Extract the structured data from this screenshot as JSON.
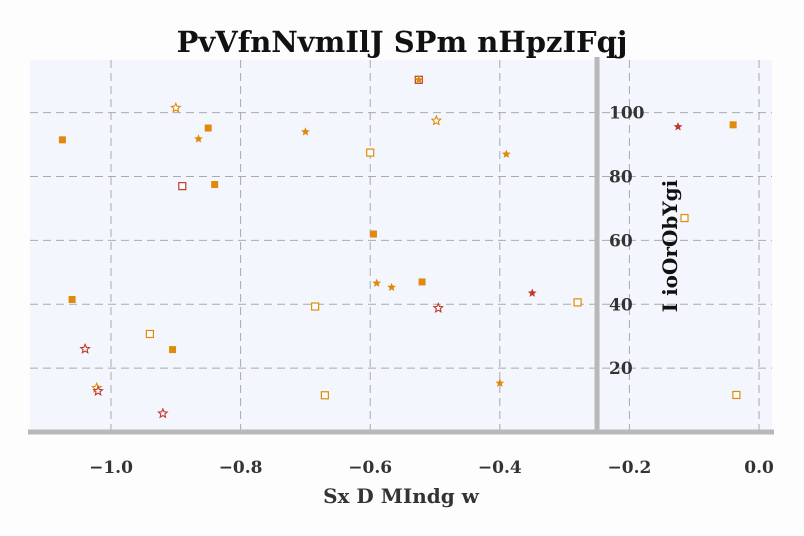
{
  "chart_data": {
    "type": "scatter",
    "title": "PvVfnNvmIlJ SPm nHpzIFqj",
    "xlabel": "Sx D MIndg w",
    "ylabel": "I ioOrObYgi",
    "xlim": [
      -1.125,
      0.02
    ],
    "ylim": [
      0,
      116.5
    ],
    "grid": true,
    "x_ticks": [
      -1.0,
      -0.8,
      -0.6,
      -0.4,
      -0.2,
      0.0
    ],
    "x_tick_labels": [
      "−1.0",
      "−0.8",
      "−0.6",
      "−0.4",
      "−0.2",
      "0.0"
    ],
    "y_ticks": [
      20,
      40,
      60,
      80,
      100
    ],
    "y_tick_labels": [
      "20",
      "40",
      "60",
      "80",
      "100"
    ],
    "y_axis_position_x": -0.25,
    "colors": {
      "orange": "#e08a0b",
      "red": "#c0392b",
      "spine": "#b8b8b8",
      "plot_bg": "#f3f6fd",
      "grid": "#aaaaaa"
    },
    "points": [
      {
        "x": -1.075,
        "y": 91.5,
        "marker": "square-filled",
        "color": "#e08a0b"
      },
      {
        "x": -1.06,
        "y": 41.5,
        "marker": "square-filled",
        "color": "#e08a0b"
      },
      {
        "x": -0.905,
        "y": 25.8,
        "marker": "square-filled",
        "color": "#e08a0b"
      },
      {
        "x": -0.85,
        "y": 95.2,
        "marker": "square-filled",
        "color": "#e08a0b"
      },
      {
        "x": -0.84,
        "y": 77.5,
        "marker": "square-filled",
        "color": "#e08a0b"
      },
      {
        "x": -0.595,
        "y": 62.0,
        "marker": "square-filled",
        "color": "#e08a0b"
      },
      {
        "x": -0.52,
        "y": 47.0,
        "marker": "square-filled",
        "color": "#e08a0b"
      },
      {
        "x": -0.04,
        "y": 96.2,
        "marker": "square-filled",
        "color": "#e08a0b"
      },
      {
        "x": -0.89,
        "y": 77.0,
        "marker": "square-open",
        "color": "#c0392b"
      },
      {
        "x": -0.525,
        "y": 110.3,
        "marker": "square-open",
        "color": "#c0392b"
      },
      {
        "x": -0.94,
        "y": 30.7,
        "marker": "square-open",
        "color": "#e08a0b"
      },
      {
        "x": -0.685,
        "y": 39.3,
        "marker": "square-open",
        "color": "#e08a0b"
      },
      {
        "x": -0.67,
        "y": 11.5,
        "marker": "square-open",
        "color": "#e08a0b"
      },
      {
        "x": -0.6,
        "y": 87.5,
        "marker": "square-open",
        "color": "#e08a0b"
      },
      {
        "x": -0.28,
        "y": 40.6,
        "marker": "square-open",
        "color": "#e08a0b"
      },
      {
        "x": -0.115,
        "y": 67.0,
        "marker": "square-open",
        "color": "#e08a0b"
      },
      {
        "x": -0.035,
        "y": 11.6,
        "marker": "square-open",
        "color": "#e08a0b"
      },
      {
        "x": -0.865,
        "y": 91.8,
        "marker": "star-filled",
        "color": "#e08a0b"
      },
      {
        "x": -0.7,
        "y": 94.0,
        "marker": "star-filled",
        "color": "#e08a0b"
      },
      {
        "x": -0.59,
        "y": 46.6,
        "marker": "star-filled",
        "color": "#e08a0b"
      },
      {
        "x": -0.567,
        "y": 45.3,
        "marker": "star-filled",
        "color": "#e08a0b"
      },
      {
        "x": -0.525,
        "y": 110.3,
        "marker": "star-filled",
        "color": "#e08a0b"
      },
      {
        "x": -0.4,
        "y": 15.3,
        "marker": "star-filled",
        "color": "#e08a0b"
      },
      {
        "x": -0.39,
        "y": 87.0,
        "marker": "star-filled",
        "color": "#e08a0b"
      },
      {
        "x": -0.35,
        "y": 43.5,
        "marker": "star-filled",
        "color": "#c0392b"
      },
      {
        "x": -0.125,
        "y": 95.6,
        "marker": "star-filled",
        "color": "#c0392b"
      },
      {
        "x": -0.9,
        "y": 101.5,
        "marker": "star-open",
        "color": "#e08a0b"
      },
      {
        "x": -0.498,
        "y": 97.5,
        "marker": "star-open",
        "color": "#e08a0b"
      },
      {
        "x": -1.022,
        "y": 13.8,
        "marker": "star-open",
        "color": "#e08a0b"
      },
      {
        "x": -1.02,
        "y": 12.8,
        "marker": "star-open",
        "color": "#c0392b"
      },
      {
        "x": -1.04,
        "y": 26.0,
        "marker": "star-open",
        "color": "#c0392b"
      },
      {
        "x": -0.92,
        "y": 5.8,
        "marker": "star-open",
        "color": "#c0392b"
      },
      {
        "x": -0.495,
        "y": 38.8,
        "marker": "star-open",
        "color": "#c0392b"
      }
    ]
  }
}
